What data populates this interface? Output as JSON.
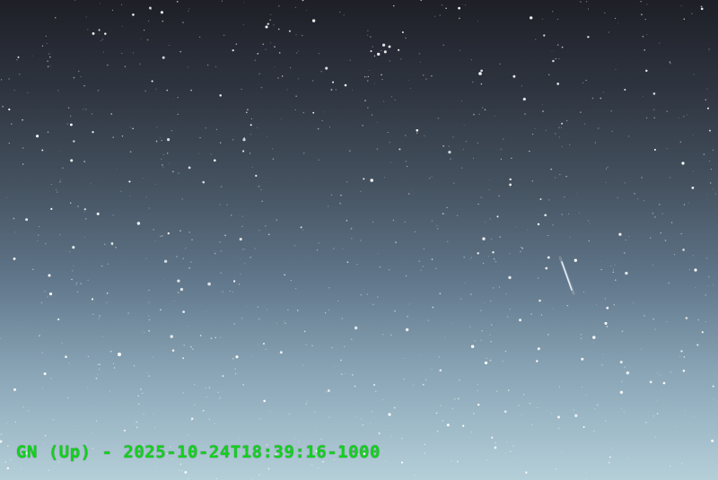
{
  "camera": {
    "overlay_text": "GN (Up) - 2025-10-24T18:39:16-1000"
  },
  "colors": {
    "overlay_text": "#11d21b",
    "sky_top": "#1e1f27",
    "sky_bottom": "#b5cfd9",
    "star": "#ffffff"
  }
}
